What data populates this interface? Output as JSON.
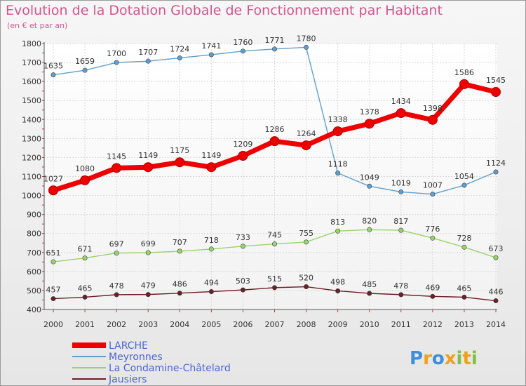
{
  "chart_data": {
    "type": "line",
    "title": "Evolution de la Dotation Globale de Fonctionnement par Habitant",
    "subtitle": "(en € et par an)",
    "categories": [
      "2000",
      "2001",
      "2002",
      "2003",
      "2004",
      "2005",
      "2006",
      "2007",
      "2008",
      "2009",
      "2010",
      "2011",
      "2012",
      "2013",
      "2014"
    ],
    "ylim": [
      400,
      1800
    ],
    "yticks": [
      400,
      500,
      600,
      700,
      800,
      900,
      1000,
      1100,
      1200,
      1300,
      1400,
      1500,
      1600,
      1700,
      1800
    ],
    "grid": true,
    "series": [
      {
        "name": "LARCHE",
        "color": "#ee0000",
        "values": [
          1027,
          1080,
          1145,
          1149,
          1175,
          1149,
          1209,
          1286,
          1264,
          1338,
          1378,
          1434,
          1398,
          1586,
          1545
        ]
      },
      {
        "name": "Meyronnes",
        "color": "#5f9fd0",
        "values": [
          1635,
          1659,
          1700,
          1707,
          1724,
          1741,
          1760,
          1771,
          1780,
          1118,
          1049,
          1019,
          1007,
          1054,
          1124
        ]
      },
      {
        "name": "La Condamine-Châtelard",
        "color": "#99d46a",
        "values": [
          651,
          671,
          697,
          699,
          707,
          718,
          733,
          745,
          755,
          813,
          820,
          817,
          776,
          728,
          673
        ]
      },
      {
        "name": "Jausiers",
        "color": "#6b1e26",
        "values": [
          457,
          465,
          478,
          479,
          486,
          494,
          503,
          515,
          520,
          498,
          485,
          478,
          469,
          465,
          446
        ]
      }
    ],
    "legend_position": "bottom-left"
  },
  "logo": {
    "letters": [
      "P",
      "r",
      "o",
      "x",
      "i",
      "t",
      "i"
    ],
    "colors": [
      "#3f8fd8",
      "#f0a020",
      "#3f8fd8",
      "#f0a020",
      "#7cc243",
      "#f0a020",
      "#7cc243"
    ]
  }
}
